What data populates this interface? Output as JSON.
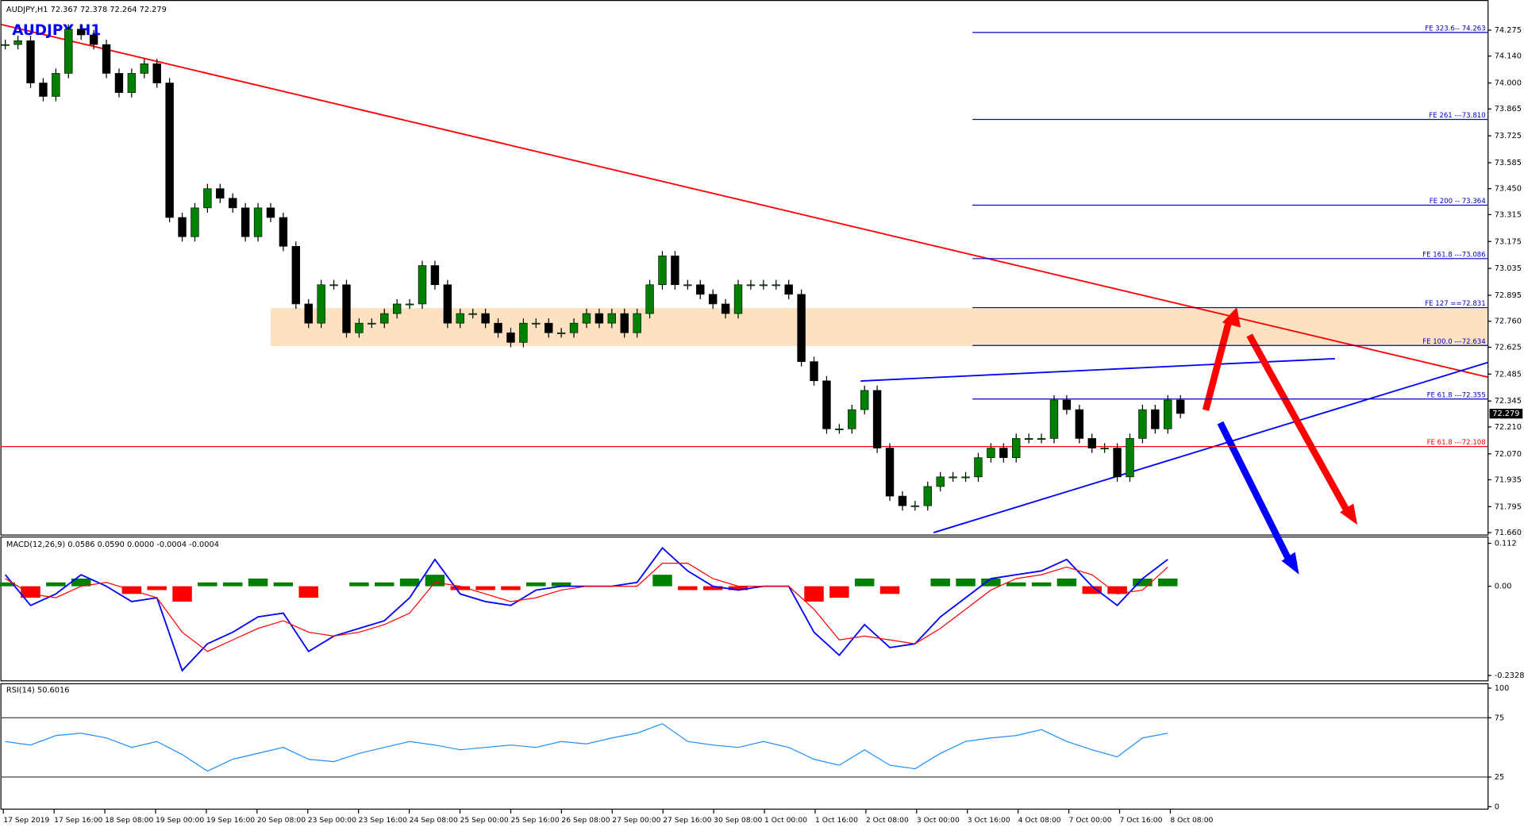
{
  "header": "AUDJPY,H1  72.367 72.378 72.264 72.279",
  "time_axis": [
    "17 Sep 2019",
    "17 Sep 16:00",
    "18 Sep 08:00",
    "19 Sep 00:00",
    "19 Sep 16:00",
    "20 Sep 08:00",
    "23 Sep 00:00",
    "23 Sep 16:00",
    "24 Sep 08:00",
    "25 Sep 00:00",
    "25 Sep 16:00",
    "26 Sep 08:00",
    "27 Sep 00:00",
    "27 Sep 16:00",
    "30 Sep 08:00",
    "1 Oct 00:00",
    "1 Oct 16:00",
    "2 Oct 08:00",
    "3 Oct 00:00",
    "3 Oct 16:00",
    "4 Oct 08:00",
    "7 Oct 00:00",
    "7 Oct 16:00",
    "8 Oct 08:00"
  ],
  "chart_data": [
    {
      "type": "candlestick",
      "title": "AUDJPY   H1",
      "values": [
        74.2,
        74.22,
        74.0,
        73.93,
        74.05,
        74.28,
        74.25,
        74.2,
        74.05,
        73.95,
        74.05,
        74.1,
        74.0,
        73.3,
        73.2,
        73.35,
        73.45,
        73.4,
        73.35,
        73.2,
        73.35,
        73.3,
        73.15,
        72.85,
        72.75,
        72.95,
        72.95,
        72.7,
        72.75,
        72.75,
        72.8,
        72.85,
        72.85,
        73.05,
        72.95,
        72.75,
        72.8,
        72.8,
        72.75,
        72.7,
        72.65,
        72.75,
        72.75,
        72.7,
        72.7,
        72.75,
        72.8,
        72.75,
        72.8,
        72.7,
        72.8,
        72.95,
        73.1,
        72.95,
        72.95,
        72.9,
        72.85,
        72.8,
        72.95,
        72.95,
        72.95,
        72.95,
        72.9,
        72.55,
        72.45,
        72.2,
        72.2,
        72.3,
        72.4,
        72.1,
        71.85,
        71.8,
        71.8,
        71.9,
        71.95,
        71.95,
        71.95,
        72.05,
        72.1,
        72.05,
        72.15,
        72.15,
        72.15,
        72.35,
        72.3,
        72.15,
        72.1,
        72.1,
        71.95,
        72.15,
        72.3,
        72.2,
        72.35,
        72.28
      ],
      "ylim": [
        71.66,
        74.275
      ],
      "yticks": [
        74.275,
        {
          "value": 74.14,
          "label": "74.140"
        },
        {
          "value": 74.0,
          "label": "74.000"
        },
        73.865,
        73.725,
        73.585,
        {
          "value": 73.45,
          "label": "73.450"
        },
        73.315,
        73.175,
        73.035,
        72.895,
        {
          "value": 72.76,
          "label": "72.760"
        },
        72.625,
        72.485,
        72.345,
        {
          "value": 72.21,
          "label": "72.210"
        },
        {
          "value": 72.07,
          "label": "72.070"
        },
        71.935,
        71.795,
        {
          "value": 71.66,
          "label": "71.660"
        }
      ],
      "current_price": 72.279,
      "levels": [
        {
          "value": 74.263,
          "label": "FE 323.6-- 74.263",
          "color": "#0000cc"
        },
        {
          "value": 73.81,
          "label": "FE 261 ---73.810",
          "color": "#0000cc"
        },
        {
          "value": 73.364,
          "label": "FE 200 -- 73.364",
          "color": "#0000cc"
        },
        {
          "value": 73.086,
          "label": "FE 161.8 ---73.086",
          "color": "#0000cc"
        },
        {
          "value": 72.831,
          "label": "FE 127 ==72.831",
          "color": "#0000cc"
        },
        {
          "value": 72.634,
          "label": "FE 100.0 ---72.634",
          "color": "#0000cc"
        },
        {
          "value": 72.355,
          "label": "FE 61.8 ---72.355",
          "color": "#0000cc"
        },
        {
          "value": 72.108,
          "label": "FE 61.8 ---72.108",
          "color": "#ff0000"
        }
      ],
      "up_color": "#008000",
      "down_color": "#000000"
    },
    {
      "type": "macd",
      "title": "MACD(12,26,9) 0.0586 0.0590 0.0000 -0.0004 -0.0004",
      "ylim": [
        -0.2328,
        0.112
      ],
      "yticks": [
        0.112,
        {
          "value": 0,
          "label": "0.00"
        },
        -0.2328
      ],
      "series": [
        {
          "name": "MACD",
          "color": "#0000ff",
          "values": [
            0.03,
            -0.05,
            -0.02,
            0.03,
            0.0,
            -0.04,
            -0.03,
            -0.22,
            -0.15,
            -0.12,
            -0.08,
            -0.07,
            -0.17,
            -0.13,
            -0.11,
            -0.09,
            -0.03,
            0.07,
            -0.02,
            -0.04,
            -0.05,
            -0.01,
            0.0,
            0.0,
            0.0,
            0.01,
            0.1,
            0.04,
            0.0,
            -0.01,
            0.0,
            0.0,
            -0.12,
            -0.18,
            -0.1,
            -0.16,
            -0.15,
            -0.08,
            -0.03,
            0.02,
            0.03,
            0.04,
            0.07,
            0.0,
            -0.05,
            0.02,
            0.07
          ]
        },
        {
          "name": "Signal",
          "color": "#ff0000",
          "values": [
            0.02,
            -0.02,
            -0.03,
            0.0,
            0.01,
            -0.01,
            -0.03,
            -0.12,
            -0.17,
            -0.14,
            -0.11,
            -0.09,
            -0.12,
            -0.13,
            -0.12,
            -0.1,
            -0.07,
            0.01,
            0.0,
            -0.02,
            -0.04,
            -0.03,
            -0.01,
            0.0,
            0.0,
            0.0,
            0.06,
            0.06,
            0.02,
            0.0,
            0.0,
            0.0,
            -0.06,
            -0.14,
            -0.13,
            -0.14,
            -0.15,
            -0.11,
            -0.06,
            -0.01,
            0.02,
            0.03,
            0.05,
            0.03,
            -0.02,
            -0.01,
            0.05
          ]
        }
      ],
      "histogram": [
        0.01,
        -0.03,
        0.01,
        0.02,
        0.0,
        -0.02,
        -0.01,
        -0.04,
        0.01,
        0.01,
        0.02,
        0.01,
        -0.03,
        0.0,
        0.01,
        0.01,
        0.02,
        0.03,
        -0.01,
        -0.01,
        -0.01,
        0.01,
        0.01,
        0.0,
        0.0,
        0.0,
        0.03,
        -0.01,
        -0.01,
        -0.01,
        0.0,
        0.0,
        -0.04,
        -0.03,
        0.02,
        -0.02,
        0.0,
        0.02,
        0.02,
        0.02,
        0.01,
        0.01,
        0.02,
        -0.02,
        -0.02,
        0.02,
        0.02
      ],
      "up_color": "#008000",
      "down_color": "#ff0000"
    },
    {
      "type": "rsi",
      "title": "RSI(14) 50.6016",
      "ylim": [
        0,
        100
      ],
      "yticks": [
        100,
        75,
        25,
        0
      ],
      "values": [
        55,
        52,
        60,
        62,
        58,
        50,
        55,
        44,
        30,
        40,
        45,
        50,
        40,
        38,
        45,
        50,
        55,
        52,
        48,
        50,
        52,
        50,
        55,
        53,
        58,
        62,
        70,
        55,
        52,
        50,
        55,
        50,
        40,
        35,
        48,
        35,
        32,
        45,
        55,
        58,
        60,
        65,
        55,
        48,
        42,
        58,
        62
      ],
      "color": "#1e90ff"
    }
  ]
}
